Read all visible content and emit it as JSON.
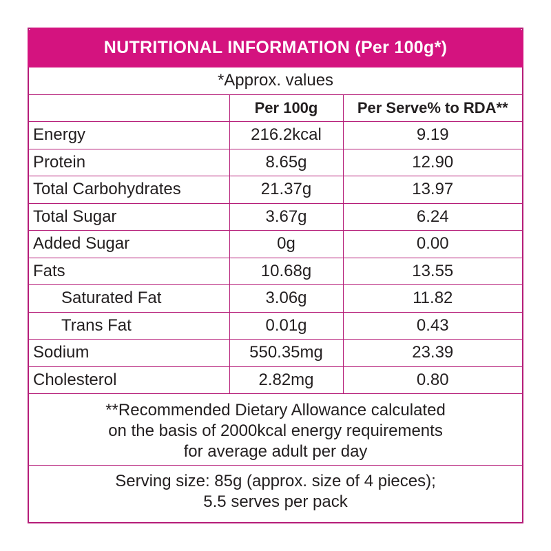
{
  "title": "NUTRITIONAL INFORMATION (Per 100g*)",
  "approx_note": "*Approx. values",
  "columns": [
    "",
    "Per 100g",
    "Per Serve% to RDA**"
  ],
  "rows": [
    {
      "name": "Energy",
      "per100g": "216.2kcal",
      "rda": "9.19",
      "indent": false
    },
    {
      "name": "Protein",
      "per100g": "8.65g",
      "rda": "12.90",
      "indent": false
    },
    {
      "name": "Total Carbohydrates",
      "per100g": "21.37g",
      "rda": "13.97",
      "indent": false
    },
    {
      "name": "Total Sugar",
      "per100g": "3.67g",
      "rda": "6.24",
      "indent": false
    },
    {
      "name": "Added Sugar",
      "per100g": "0g",
      "rda": "0.00",
      "indent": false
    },
    {
      "name": "Fats",
      "per100g": "10.68g",
      "rda": "13.55",
      "indent": false
    },
    {
      "name": "Saturated Fat",
      "per100g": "3.06g",
      "rda": "11.82",
      "indent": true
    },
    {
      "name": "Trans Fat",
      "per100g": "0.01g",
      "rda": "0.43",
      "indent": true
    },
    {
      "name": "Sodium",
      "per100g": "550.35mg",
      "rda": "23.39",
      "indent": false
    },
    {
      "name": "Cholesterol",
      "per100g": "2.82mg",
      "rda": "0.80",
      "indent": false
    }
  ],
  "footnote": {
    "line1": "**Recommended Dietary Allowance calculated",
    "line2": "on the basis of 2000kcal energy requirements",
    "line3": "for average adult per day"
  },
  "serving": {
    "line1": "Serving size: 85g (approx. size of 4 pieces);",
    "line2": "5.5 serves per pack"
  },
  "colors": {
    "accent": "#d4137f",
    "border": "#b51c78",
    "text": "#231f20"
  }
}
